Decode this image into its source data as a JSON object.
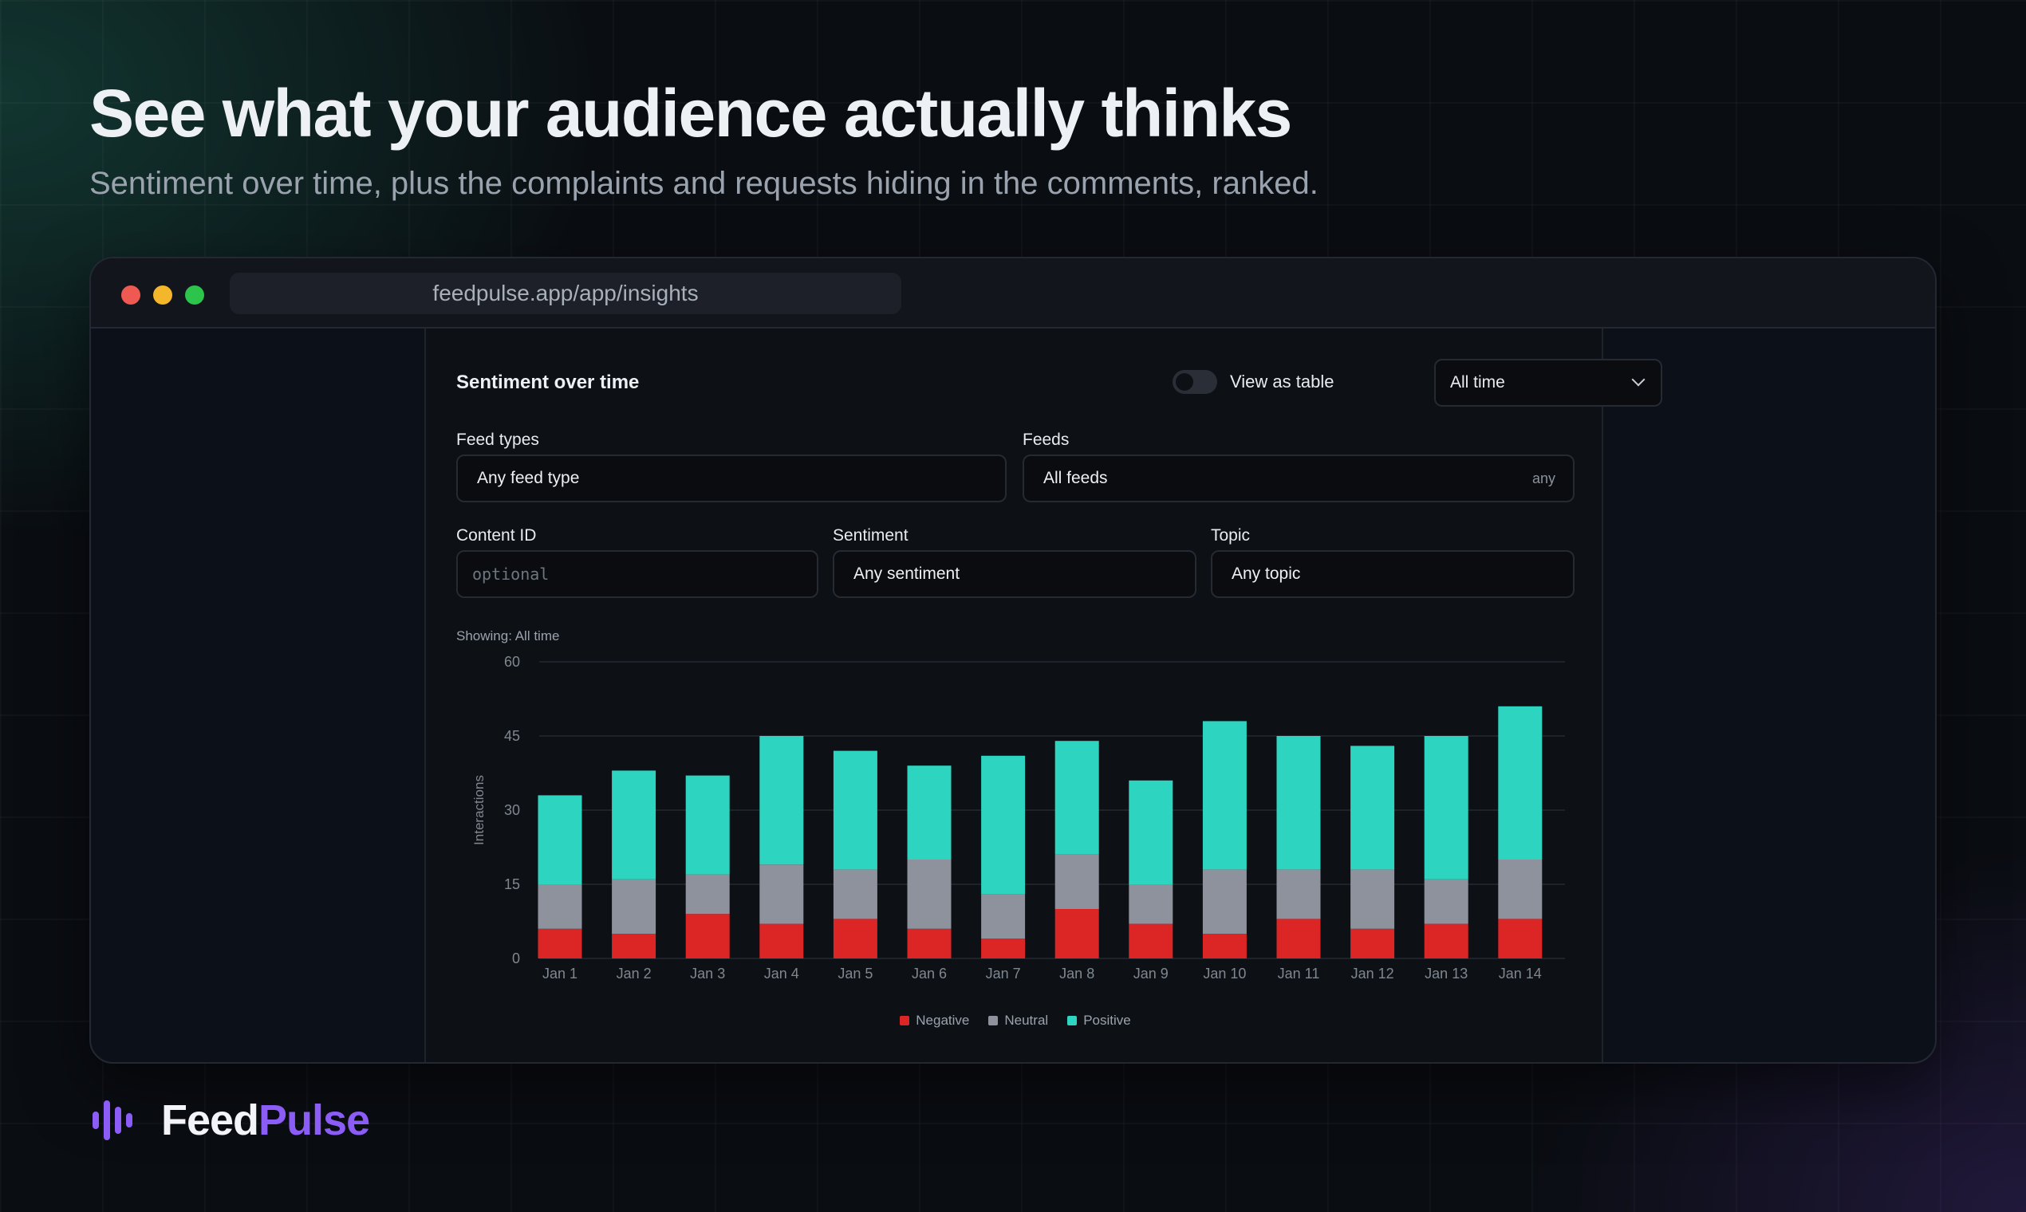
{
  "hero": {
    "title": "See what your audience actually thinks",
    "subtitle": "Sentiment over time, plus the complaints and requests hiding in the comments, ranked."
  },
  "browser": {
    "url": "feedpulse.app/app/insights"
  },
  "panel": {
    "title": "Sentiment over time",
    "toggle_label": "View as table",
    "toggle_on": false,
    "time_range": "All time",
    "filters": {
      "feed_types": {
        "label": "Feed types",
        "value": "Any feed type"
      },
      "feeds": {
        "label": "Feeds",
        "value": "All feeds",
        "hint": "any"
      },
      "content_id": {
        "label": "Content ID",
        "placeholder": "optional"
      },
      "sentiment": {
        "label": "Sentiment",
        "value": "Any sentiment"
      },
      "topic": {
        "label": "Topic",
        "value": "Any topic"
      }
    },
    "showing": "Showing: All time"
  },
  "chart_data": {
    "type": "bar",
    "stacked": true,
    "categories": [
      "Jan 1",
      "Jan 2",
      "Jan 3",
      "Jan 4",
      "Jan 5",
      "Jan 6",
      "Jan 7",
      "Jan 8",
      "Jan 9",
      "Jan 10",
      "Jan 11",
      "Jan 12",
      "Jan 13",
      "Jan 14"
    ],
    "series": [
      {
        "name": "Negative",
        "color": "#dc2626",
        "values": [
          6,
          5,
          9,
          7,
          8,
          6,
          4,
          10,
          7,
          5,
          8,
          6,
          7,
          8
        ]
      },
      {
        "name": "Neutral",
        "color": "#8e929c",
        "values": [
          9,
          11,
          8,
          12,
          10,
          14,
          9,
          11,
          8,
          13,
          10,
          12,
          9,
          12
        ]
      },
      {
        "name": "Positive",
        "color": "#2dd4bf",
        "values": [
          18,
          22,
          20,
          26,
          24,
          19,
          28,
          23,
          21,
          30,
          27,
          25,
          29,
          31
        ]
      }
    ],
    "ylabel": "Interactions",
    "xlabel": "",
    "ylim": [
      0,
      60
    ],
    "yticks": [
      0,
      15,
      30,
      45,
      60
    ],
    "grid": true,
    "legend_position": "bottom-center"
  },
  "brand": {
    "part1": "Feed",
    "part2": "Pulse",
    "accent": "#8b5cf6"
  }
}
